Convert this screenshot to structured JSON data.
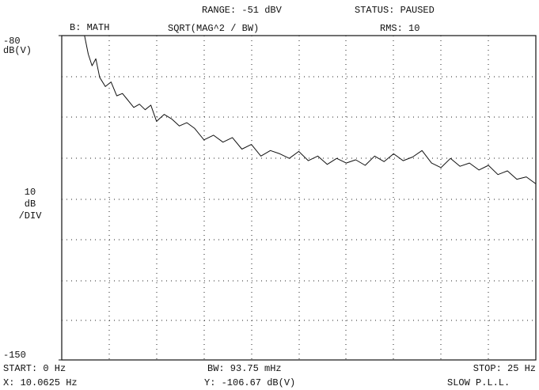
{
  "header": {
    "range": "RANGE: -51 dBV",
    "status": "STATUS: PAUSED",
    "trace": "B: MATH",
    "function": "SQRT(MAG^2 / BW)",
    "rms": "RMS: 10"
  },
  "scale": {
    "unit": "dB(V)",
    "div_value": "10",
    "div_unit": "dB",
    "div_label": "/DIV"
  },
  "footer": {
    "start": "START: 0 Hz",
    "bw": "BW: 93.75 mHz",
    "stop": "STOP: 25 Hz",
    "x_marker": "X: 10.0625 Hz",
    "y_marker": "Y: -106.67 dB(V)",
    "mode": "SLOW P.L.L."
  },
  "chart_data": {
    "type": "line",
    "color": "#111111",
    "xlim": [
      0,
      25
    ],
    "ylim": [
      -150,
      -80
    ],
    "yticks": [
      -150,
      -80
    ],
    "x": [
      1.2,
      1.4,
      1.6,
      1.8,
      2.0,
      2.3,
      2.6,
      2.9,
      3.2,
      3.5,
      3.8,
      4.1,
      4.4,
      4.7,
      5.0,
      5.4,
      5.8,
      6.2,
      6.6,
      7.0,
      7.5,
      8.0,
      8.5,
      9.0,
      9.5,
      10.0,
      10.5,
      11.0,
      11.5,
      12.0,
      12.5,
      13.0,
      13.5,
      14.0,
      14.5,
      15.0,
      15.5,
      16.0,
      16.5,
      17.0,
      17.5,
      18.0,
      18.5,
      19.0,
      19.5,
      20.0,
      20.5,
      21.0,
      21.5,
      22.0,
      22.5,
      23.0,
      23.5,
      24.0,
      24.5,
      25.0
    ],
    "values": [
      -80,
      -84,
      -86.5,
      -85,
      -89,
      -91,
      -90,
      -93,
      -92.5,
      -94,
      -95.5,
      -94.8,
      -96,
      -95,
      -98.5,
      -97,
      -98,
      -99.5,
      -98.8,
      -100,
      -102.5,
      -101.5,
      -103,
      -102,
      -104.5,
      -103.5,
      -106,
      -104.8,
      -105.5,
      -106.5,
      -105,
      -107,
      -106,
      -107.8,
      -106.5,
      -107.5,
      -106.8,
      -108,
      -106,
      -107.2,
      -105.5,
      -107,
      -106.2,
      -104.8,
      -107.5,
      -108.5,
      -106.5,
      -108.2,
      -107.5,
      -109,
      -108,
      -110,
      -109.2,
      -111,
      -110.5,
      -112
    ]
  }
}
